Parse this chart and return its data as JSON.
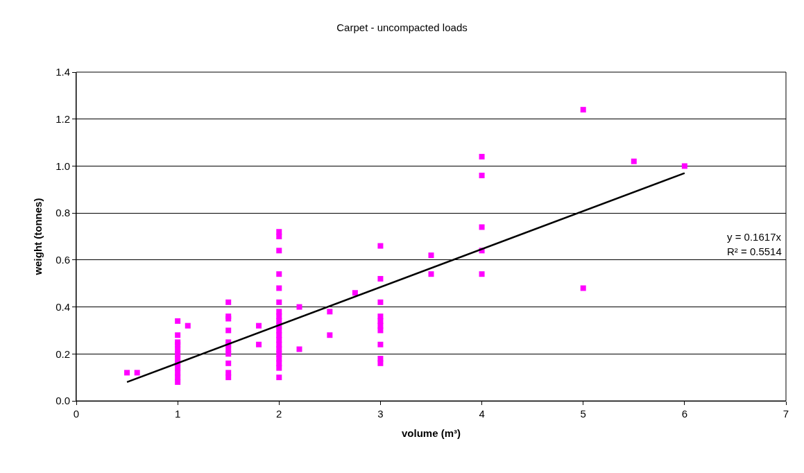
{
  "chart_data": {
    "type": "scatter",
    "title": "Carpet - uncompacted loads",
    "xlabel": "volume (m³)",
    "ylabel": "weight (tonnes)",
    "xlim": [
      0,
      7
    ],
    "xticks": [
      0,
      1,
      2,
      3,
      4,
      5,
      6,
      7
    ],
    "ylim": [
      0,
      1.4
    ],
    "yticks": [
      {
        "value": 0,
        "label": "0.0"
      },
      0.2,
      0.4,
      0.6,
      0.8,
      {
        "value": 1,
        "label": "1.0"
      },
      1.2,
      1.4
    ],
    "grid": "y",
    "marker": "square",
    "annotations": [
      "y = 0.1617x",
      "R² = 0.5514"
    ],
    "series": [
      {
        "color": "#ff00ff",
        "x": [
          0.5,
          0.6,
          1,
          1,
          1,
          1,
          1,
          1,
          1,
          1,
          1,
          1,
          1,
          1,
          1.1,
          1.5,
          1.5,
          1.5,
          1.5,
          1.5,
          1.5,
          1.5,
          1.5,
          1.5,
          1.5,
          1.5,
          1.8,
          1.8,
          2,
          2,
          2,
          2,
          2,
          2,
          2,
          2,
          2,
          2,
          2,
          2,
          2,
          2,
          2,
          2,
          2,
          2,
          2,
          2,
          2.2,
          2.2,
          2.5,
          2.5,
          2.75,
          3,
          3,
          3,
          3,
          3,
          3,
          3,
          3,
          3,
          3,
          3.5,
          3.5,
          4,
          4,
          4,
          4,
          4,
          5,
          5,
          5.5,
          6
        ],
        "values": [
          0.12,
          0.12,
          0.34,
          0.28,
          0.25,
          0.24,
          0.22,
          0.2,
          0.18,
          0.16,
          0.14,
          0.12,
          0.1,
          0.08,
          0.32,
          0.42,
          0.36,
          0.35,
          0.3,
          0.25,
          0.24,
          0.22,
          0.2,
          0.16,
          0.12,
          0.1,
          0.32,
          0.24,
          0.72,
          0.7,
          0.64,
          0.54,
          0.48,
          0.42,
          0.38,
          0.36,
          0.34,
          0.32,
          0.3,
          0.28,
          0.26,
          0.24,
          0.22,
          0.2,
          0.18,
          0.16,
          0.14,
          0.1,
          0.4,
          0.22,
          0.38,
          0.28,
          0.46,
          0.66,
          0.52,
          0.42,
          0.36,
          0.34,
          0.32,
          0.3,
          0.24,
          0.18,
          0.16,
          0.62,
          0.54,
          1.04,
          0.96,
          0.74,
          0.64,
          0.54,
          1.24,
          0.48,
          1.02,
          1.0
        ]
      },
      {
        "type": "line",
        "color": "#000000",
        "x": [
          0.5,
          6
        ],
        "values": [
          0.08,
          0.97
        ],
        "marker": "none"
      }
    ]
  }
}
